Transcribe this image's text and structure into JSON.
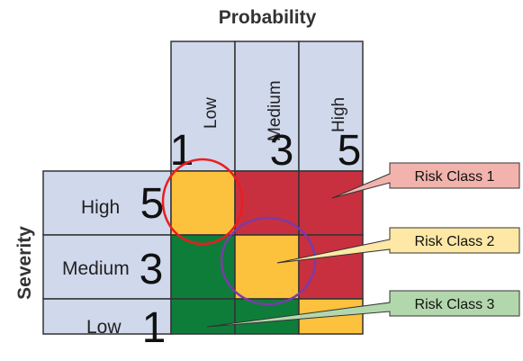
{
  "axis_titles": {
    "probability": "Probability",
    "severity": "Severity"
  },
  "probability_levels": [
    {
      "label": "Low",
      "score": "1"
    },
    {
      "label": "Medium",
      "score": "3"
    },
    {
      "label": "High",
      "score": "5"
    }
  ],
  "severity_levels": [
    {
      "label": "High",
      "score": "5"
    },
    {
      "label": "Medium",
      "score": "3"
    },
    {
      "label": "Low",
      "score": "1"
    }
  ],
  "matrix": [
    [
      "amber",
      "red",
      "red"
    ],
    [
      "green",
      "amber",
      "red"
    ],
    [
      "green",
      "green",
      "amber"
    ]
  ],
  "risk_classes": [
    {
      "label": "Risk Class 1",
      "color": "#f2b3ac"
    },
    {
      "label": "Risk Class 2",
      "color": "#fde8a6"
    },
    {
      "label": "Risk Class 3",
      "color": "#b3d7ac"
    }
  ],
  "colors": {
    "header_bg": "#d0d8ec",
    "grid_line": "#333333",
    "red": "#c8303f",
    "amber": "#fcc13d",
    "green": "#0f7d3a",
    "highlight_red": "#e81e1e",
    "highlight_purple": "#7a3ba8"
  }
}
